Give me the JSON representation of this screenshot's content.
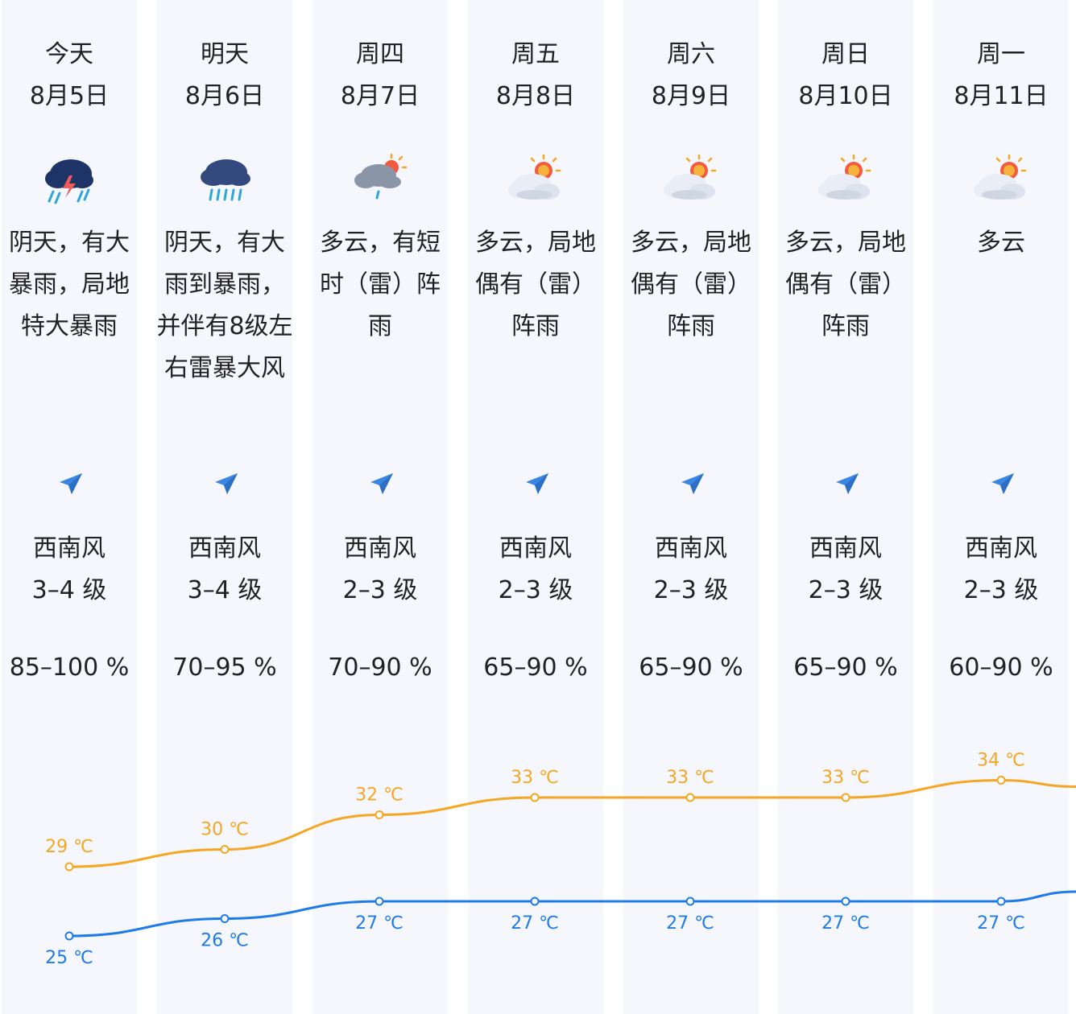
{
  "days": [
    {
      "weekday": "今天",
      "date": "8月5日",
      "icon": "thunderstorm-icon",
      "desc": "阴天，有大暴雨，局地特大暴雨",
      "wind_dir": "西南风",
      "wind_level": "3–4 级",
      "humidity": "85–100 %",
      "high": "29 ℃",
      "low": "25 ℃"
    },
    {
      "weekday": "明天",
      "date": "8月6日",
      "icon": "heavy-rain-icon",
      "desc": "阴天，有大雨到暴雨，并伴有8级左右雷暴大风",
      "wind_dir": "西南风",
      "wind_level": "3–4 级",
      "humidity": "70–95 %",
      "high": "30 ℃",
      "low": "26 ℃"
    },
    {
      "weekday": "周四",
      "date": "8月7日",
      "icon": "cloudy-shower-icon",
      "desc": "多云，有短时（雷）阵雨",
      "wind_dir": "西南风",
      "wind_level": "2–3 级",
      "humidity": "70–90 %",
      "high": "32 ℃",
      "low": "27 ℃"
    },
    {
      "weekday": "周五",
      "date": "8月8日",
      "icon": "partly-cloudy-icon",
      "desc": "多云，局地偶有（雷）阵雨",
      "wind_dir": "西南风",
      "wind_level": "2–3 级",
      "humidity": "65–90 %",
      "high": "33 ℃",
      "low": "27 ℃"
    },
    {
      "weekday": "周六",
      "date": "8月9日",
      "icon": "partly-cloudy-icon",
      "desc": "多云，局地偶有（雷）阵雨",
      "wind_dir": "西南风",
      "wind_level": "2–3 级",
      "humidity": "65–90 %",
      "high": "33 ℃",
      "low": "27 ℃"
    },
    {
      "weekday": "周日",
      "date": "8月10日",
      "icon": "partly-cloudy-icon",
      "desc": "多云，局地偶有（雷）阵雨",
      "wind_dir": "西南风",
      "wind_level": "2–3 级",
      "humidity": "65–90 %",
      "high": "33 ℃",
      "low": "27 ℃"
    },
    {
      "weekday": "周一",
      "date": "8月11日",
      "icon": "partly-cloudy-icon",
      "desc": "多云",
      "wind_dir": "西南风",
      "wind_level": "2–3 级",
      "humidity": "60–90 %",
      "high": "34 ℃",
      "low": "27 ℃"
    }
  ],
  "chart_data": {
    "type": "line",
    "categories": [
      "8月5日",
      "8月6日",
      "8月7日",
      "8月8日",
      "8月9日",
      "8月10日",
      "8月11日"
    ],
    "series": [
      {
        "values": [
          29,
          30,
          32,
          33,
          33,
          33,
          34
        ],
        "color": "#f5a623"
      },
      {
        "values": [
          25,
          26,
          27,
          27,
          27,
          27,
          27
        ],
        "color": "#1f7be8"
      }
    ],
    "unit": "℃"
  },
  "colors": {
    "high": "#f5a623",
    "low": "#1f7be8",
    "arrow": "#3a86e0"
  }
}
